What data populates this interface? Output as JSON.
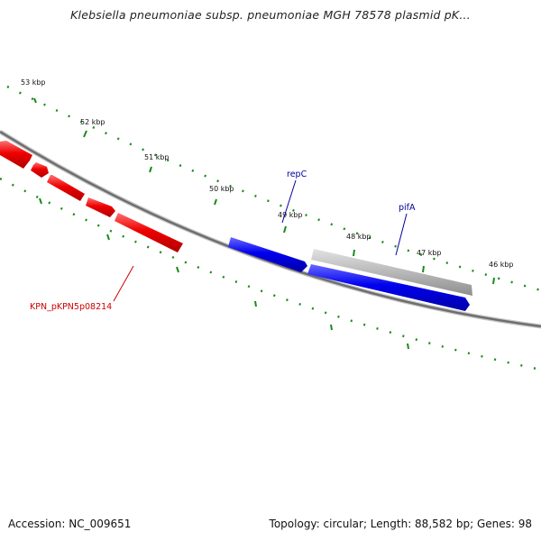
{
  "title": "Klebsiella pneumoniae subsp. pneumoniae MGH 78578 plasmid pK...",
  "accession": "Accession: NC_009651",
  "summary": "Topology: circular; Length: 88,582 bp; Genes: 98",
  "colors": {
    "backbone": "#7a7a7a",
    "tick": "#1a8a1a",
    "red_gene": "#ee0000",
    "blue_gene": "#0000ee",
    "gray_gene": "#b0b0b0",
    "red_label": "#cc0000",
    "blue_label": "#000099"
  },
  "scale_labels": [
    "53 kbp",
    "52 kbp",
    "51 kbp",
    "50 kbp",
    "49 kbp",
    "48 kbp",
    "47 kbp",
    "46 kbp"
  ],
  "gene_labels": {
    "repC": "repC",
    "pifA": "pifA",
    "kpn": "KPN_pKPN5p08214"
  }
}
